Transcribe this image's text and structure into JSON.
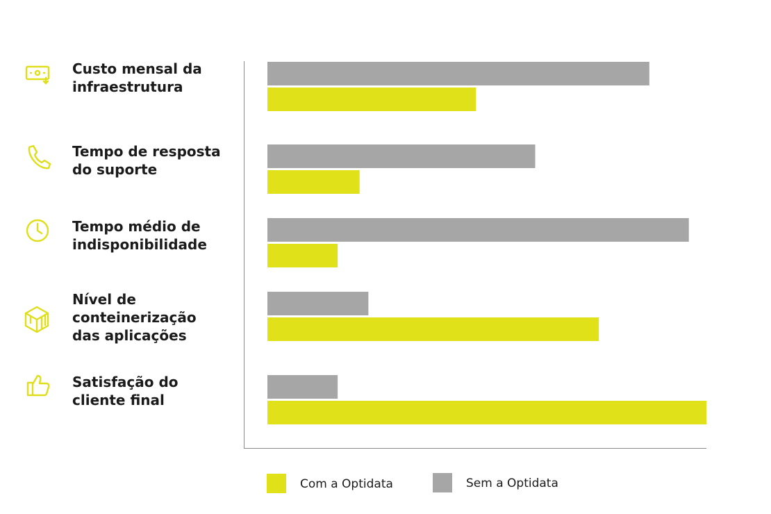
{
  "chart_data": {
    "type": "bar",
    "orientation": "horizontal",
    "categories": [
      "Custo mensal da\ninfraestrutura",
      "Tempo de resposta\ndo suporte",
      "Tempo médio de\nindisponibilidade",
      "Nível de\nconteinerização\ndas aplicações",
      "Satisfação do\ncliente final"
    ],
    "series": [
      {
        "name": "Sem a Optidata",
        "color": "#a6a6a6",
        "values": [
          87,
          61,
          96,
          23,
          16
        ]
      },
      {
        "name": "Com a Optidata",
        "color": "#e1e119",
        "values": [
          47.5,
          21,
          16,
          75.5,
          100
        ]
      }
    ],
    "xlim": [
      0,
      100
    ]
  }
}
